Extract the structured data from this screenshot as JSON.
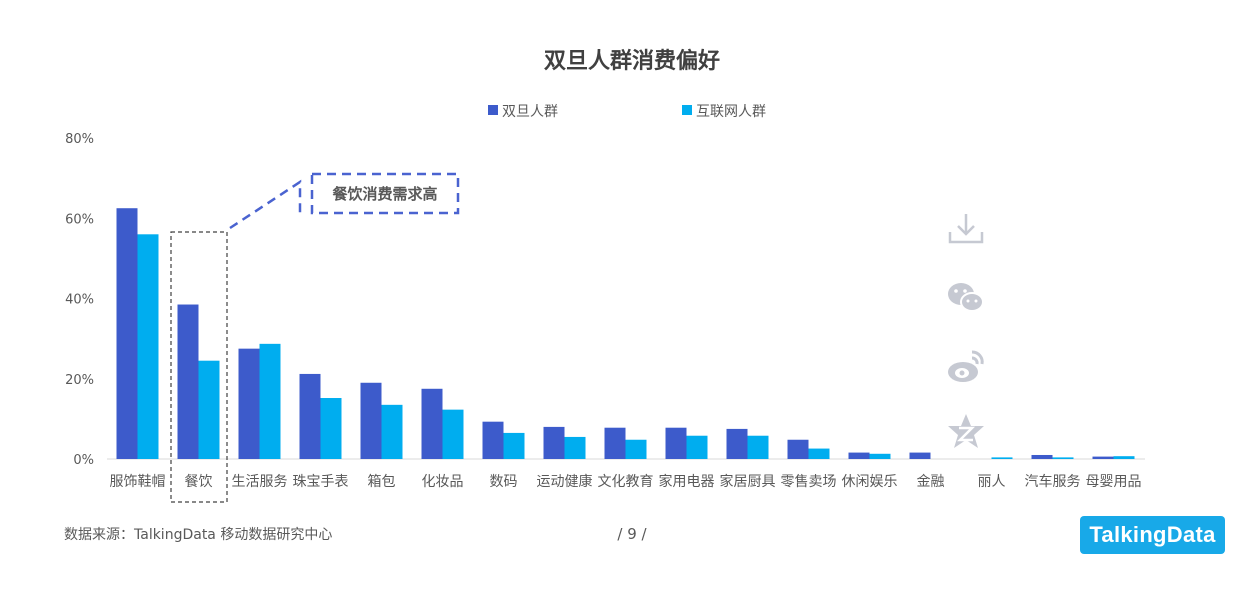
{
  "page": {
    "source_label": "数据来源：TalkingData 移动数据研究中心",
    "page_number": "/ 9 /",
    "brand": "TalkingData"
  },
  "annotation": {
    "text": "餐饮消费需求高",
    "highlight_category": "餐饮"
  },
  "colors": {
    "series_1": "#3d5bcb",
    "series_2": "#00adef",
    "annotation": "#4a63d0"
  },
  "share_icons": [
    "download-icon",
    "wechat-icon",
    "weibo-icon",
    "qzone-icon"
  ],
  "chart_data": {
    "type": "bar",
    "title": "双旦人群消费偏好",
    "categories": [
      "服饰鞋帽",
      "餐饮",
      "生活服务",
      "珠宝手表",
      "箱包",
      "化妆品",
      "数码",
      "运动健康",
      "文化教育",
      "家用电器",
      "家居厨具",
      "零售卖场",
      "休闲娱乐",
      "金融",
      "丽人",
      "汽车服务",
      "母婴用品"
    ],
    "series": [
      {
        "name": "双旦人群",
        "values": [
          62.5,
          38.5,
          27.5,
          21.2,
          19.0,
          17.5,
          9.3,
          8.0,
          7.8,
          7.8,
          7.5,
          4.8,
          1.6,
          1.6,
          0.0,
          1.0,
          0.6
        ]
      },
      {
        "name": "互联网人群",
        "values": [
          56.0,
          24.5,
          28.7,
          15.2,
          13.5,
          12.3,
          6.5,
          5.5,
          4.8,
          5.8,
          5.8,
          2.6,
          1.3,
          0.0,
          0.4,
          0.4,
          0.7
        ]
      }
    ],
    "ylim": [
      0,
      80
    ],
    "yticks": [
      "0%",
      "20%",
      "40%",
      "60%",
      "80%"
    ],
    "ytick_values": [
      0,
      20,
      40,
      60,
      80
    ],
    "legend_position": "top-center",
    "grid": false,
    "xlabel": "",
    "ylabel": ""
  }
}
